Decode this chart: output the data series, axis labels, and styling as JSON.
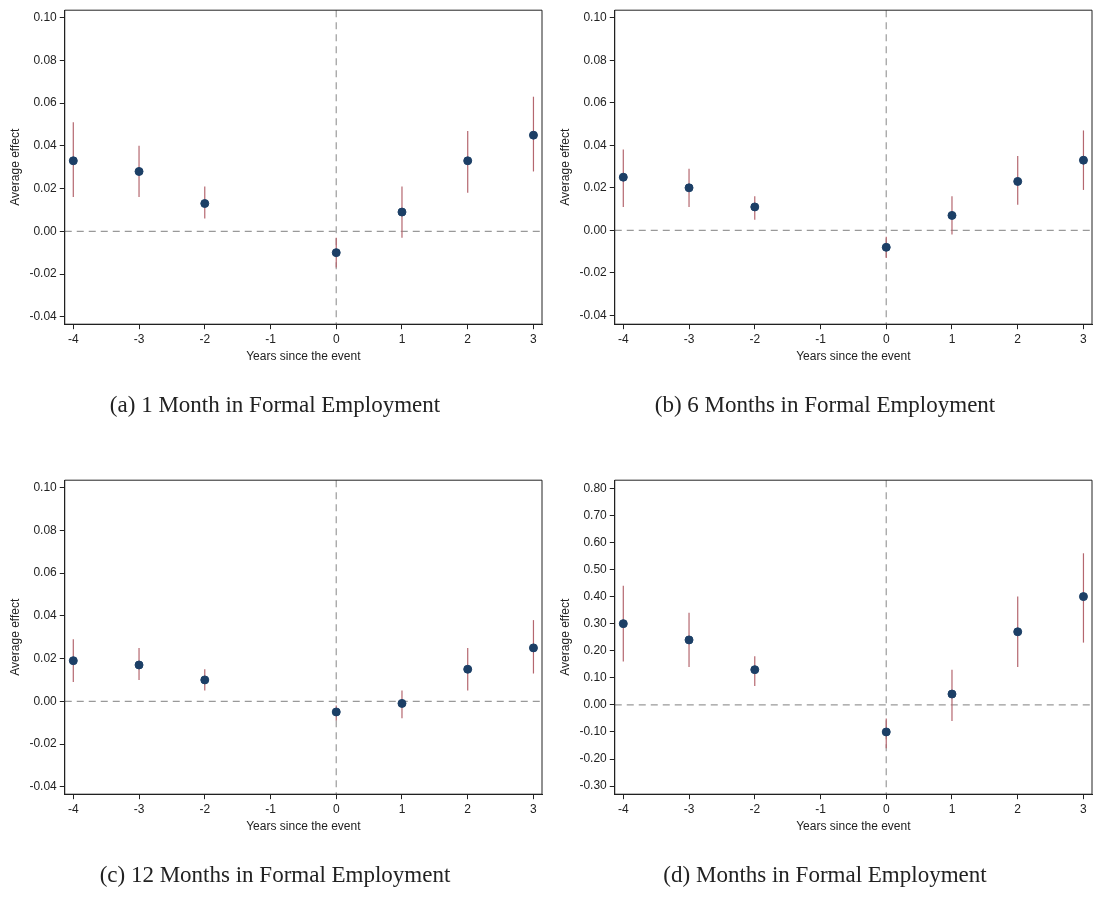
{
  "chart_data": [
    {
      "type": "scatter",
      "title": "(a) 1 Month in Formal Employment",
      "xlabel": "Years since the event",
      "ylabel": "Average effect",
      "xlim": [
        -4.13,
        3.13
      ],
      "xticks": [
        -4,
        -3,
        -2,
        -1,
        0,
        1,
        2,
        3
      ],
      "ylim": [
        -0.0435,
        0.1035
      ],
      "yticks": [
        {
          "value": -0.04,
          "label": "-0.04"
        },
        {
          "value": -0.02,
          "label": "-0.02"
        },
        {
          "value": 0,
          "label": "0.00"
        },
        {
          "value": 0.02,
          "label": "0.02"
        },
        {
          "value": 0.04,
          "label": "0.04"
        },
        {
          "value": 0.06,
          "label": "0.06"
        },
        {
          "value": 0.08,
          "label": "0.08"
        },
        {
          "value": 0.1,
          "label": "0.10"
        }
      ],
      "grid": false,
      "legend": false,
      "marker": "circle",
      "series": [
        {
          "color": "#1c3f66",
          "x": [
            -4,
            -3,
            -2,
            0,
            1,
            2,
            3
          ],
          "values": [
            0.033,
            0.028,
            0.013,
            -0.01,
            0.009,
            0.033,
            0.045
          ],
          "errors": [
            [
              0.016,
              0.051
            ],
            [
              0.016,
              0.04
            ],
            [
              0.006,
              0.021
            ],
            [
              -0.017,
              -0.003
            ],
            [
              -0.003,
              0.021
            ],
            [
              0.018,
              0.047
            ],
            [
              0.028,
              0.063
            ]
          ]
        }
      ],
      "ref_lines": [
        {
          "axis": "x",
          "value": 0,
          "color": "#a3a3a3",
          "line_style": "dashed"
        },
        {
          "axis": "y",
          "value": 0,
          "color": "#999999",
          "line_style": "dashed"
        }
      ]
    },
    {
      "type": "scatter",
      "title": "(b) 6 Months in Formal Employment",
      "xlabel": "Years since the event",
      "ylabel": "Average effect",
      "xlim": [
        -4.13,
        3.13
      ],
      "xticks": [
        -4,
        -3,
        -2,
        -1,
        0,
        1,
        2,
        3
      ],
      "ylim": [
        -0.0442,
        0.1036
      ],
      "yticks": [
        {
          "value": -0.04,
          "label": "-0.04"
        },
        {
          "value": -0.02,
          "label": "-0.02"
        },
        {
          "value": 0,
          "label": "0.00"
        },
        {
          "value": 0.02,
          "label": "0.02"
        },
        {
          "value": 0.04,
          "label": "0.04"
        },
        {
          "value": 0.06,
          "label": "0.06"
        },
        {
          "value": 0.08,
          "label": "0.08"
        },
        {
          "value": 0.1,
          "label": "0.10"
        }
      ],
      "grid": false,
      "legend": false,
      "marker": "circle",
      "series": [
        {
          "color": "#1c3f66",
          "x": [
            -4,
            -3,
            -2,
            0,
            1,
            2,
            3
          ],
          "values": [
            0.025,
            0.02,
            0.011,
            -0.008,
            0.007,
            0.023,
            0.033
          ],
          "errors": [
            [
              0.011,
              0.038
            ],
            [
              0.011,
              0.029
            ],
            [
              0.005,
              0.016
            ],
            [
              -0.013,
              -0.003
            ],
            [
              -0.002,
              0.016
            ],
            [
              0.012,
              0.035
            ],
            [
              0.019,
              0.047
            ]
          ]
        }
      ],
      "ref_lines": [
        {
          "axis": "x",
          "value": 0,
          "color": "#a3a3a3",
          "line_style": "dashed"
        },
        {
          "axis": "y",
          "value": 0,
          "color": "#999999",
          "line_style": "dashed"
        }
      ]
    },
    {
      "type": "scatter",
      "title": "(c) 12 Months in Formal Employment",
      "xlabel": "Years since the event",
      "ylabel": "Average effect",
      "xlim": [
        -4.13,
        3.13
      ],
      "xticks": [
        -4,
        -3,
        -2,
        -1,
        0,
        1,
        2,
        3
      ],
      "ylim": [
        -0.0435,
        0.1035
      ],
      "yticks": [
        {
          "value": -0.04,
          "label": "-0.04"
        },
        {
          "value": -0.02,
          "label": "-0.02"
        },
        {
          "value": 0,
          "label": "0.00"
        },
        {
          "value": 0.02,
          "label": "0.02"
        },
        {
          "value": 0.04,
          "label": "0.04"
        },
        {
          "value": 0.06,
          "label": "0.06"
        },
        {
          "value": 0.08,
          "label": "0.08"
        },
        {
          "value": 0.1,
          "label": "0.10"
        }
      ],
      "grid": false,
      "legend": false,
      "marker": "circle",
      "series": [
        {
          "color": "#1c3f66",
          "x": [
            -4,
            -3,
            -2,
            0,
            1,
            2,
            3
          ],
          "values": [
            0.019,
            0.017,
            0.01,
            -0.005,
            -0.001,
            0.015,
            0.025
          ],
          "errors": [
            [
              0.009,
              0.029
            ],
            [
              0.01,
              0.025
            ],
            [
              0.005,
              0.015
            ],
            [
              -0.009,
              -0.002
            ],
            [
              -0.008,
              0.005
            ],
            [
              0.005,
              0.025
            ],
            [
              0.013,
              0.038
            ]
          ]
        }
      ],
      "ref_lines": [
        {
          "axis": "x",
          "value": 0,
          "color": "#a3a3a3",
          "line_style": "dashed"
        },
        {
          "axis": "y",
          "value": 0,
          "color": "#999999",
          "line_style": "dashed"
        }
      ]
    },
    {
      "type": "scatter",
      "title": "(d) Months in Formal Employment",
      "xlabel": "Years since the event",
      "ylabel": "Average effect",
      "xlim": [
        -4.13,
        3.13
      ],
      "xticks": [
        -4,
        -3,
        -2,
        -1,
        0,
        1,
        2,
        3
      ],
      "ylim": [
        -0.33,
        0.83
      ],
      "yticks": [
        {
          "value": -0.3,
          "label": "-0.30"
        },
        {
          "value": -0.2,
          "label": "-0.20"
        },
        {
          "value": -0.1,
          "label": "-0.10"
        },
        {
          "value": 0,
          "label": "0.00"
        },
        {
          "value": 0.1,
          "label": "0.10"
        },
        {
          "value": 0.2,
          "label": "0.20"
        },
        {
          "value": 0.3,
          "label": "0.30"
        },
        {
          "value": 0.4,
          "label": "0.40"
        },
        {
          "value": 0.5,
          "label": "0.50"
        },
        {
          "value": 0.6,
          "label": "0.60"
        },
        {
          "value": 0.7,
          "label": "0.70"
        },
        {
          "value": 0.8,
          "label": "0.80"
        }
      ],
      "grid": false,
      "legend": false,
      "marker": "circle",
      "series": [
        {
          "color": "#1c3f66",
          "x": [
            -4,
            -3,
            -2,
            0,
            1,
            2,
            3
          ],
          "values": [
            0.3,
            0.24,
            0.13,
            -0.1,
            0.04,
            0.27,
            0.4
          ],
          "errors": [
            [
              0.16,
              0.44
            ],
            [
              0.14,
              0.34
            ],
            [
              0.07,
              0.18
            ],
            [
              -0.16,
              -0.05
            ],
            [
              -0.06,
              0.13
            ],
            [
              0.14,
              0.4
            ],
            [
              0.23,
              0.56
            ]
          ]
        }
      ],
      "ref_lines": [
        {
          "axis": "x",
          "value": 0,
          "color": "#a3a3a3",
          "line_style": "dashed"
        },
        {
          "axis": "y",
          "value": 0,
          "color": "#999999",
          "line_style": "dashed"
        }
      ]
    }
  ]
}
